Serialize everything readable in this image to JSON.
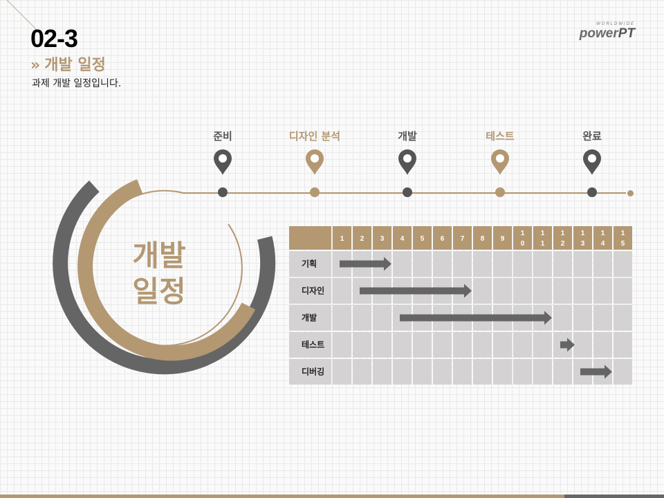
{
  "header": {
    "slide_number": "02-3",
    "section_chevron": "»",
    "section_title": "개발 일정",
    "description": "과제 개발 일정입니다."
  },
  "brand": {
    "small": "WORLDWIDE",
    "main_prefix": "power",
    "main_suffix": "PT"
  },
  "colors": {
    "gold": "#b39872",
    "gray": "#656565",
    "cell": "#d4d2d2",
    "background": "#fafafa"
  },
  "timeline": {
    "phases": [
      {
        "label": "준비",
        "color": "#555555",
        "icon": "map-pin-icon"
      },
      {
        "label": "디자인 분석",
        "color": "#b39872",
        "icon": "map-pin-icon"
      },
      {
        "label": "개발",
        "color": "#555555",
        "icon": "map-pin-icon"
      },
      {
        "label": "테스트",
        "color": "#b39872",
        "icon": "map-pin-icon"
      },
      {
        "label": "완료",
        "color": "#555555",
        "icon": "map-pin-icon"
      }
    ]
  },
  "ring": {
    "line1": "개발",
    "line2": "일정"
  },
  "gantt": {
    "columns": [
      [
        "1"
      ],
      [
        "2"
      ],
      [
        "3"
      ],
      [
        "4"
      ],
      [
        "5"
      ],
      [
        "6"
      ],
      [
        "7"
      ],
      [
        "8"
      ],
      [
        "9"
      ],
      [
        "1",
        "0"
      ],
      [
        "1",
        "1"
      ],
      [
        "1",
        "2"
      ],
      [
        "1",
        "3"
      ],
      [
        "1",
        "4"
      ],
      [
        "1",
        "5"
      ]
    ],
    "tasks": [
      {
        "name": "기획",
        "start": 1,
        "end": 3
      },
      {
        "name": "디자인",
        "start": 2,
        "end": 7
      },
      {
        "name": "개발",
        "start": 4,
        "end": 11
      },
      {
        "name": "테스트",
        "start": 12,
        "end": 12
      },
      {
        "name": "디버깅",
        "start": 13,
        "end": 14
      }
    ]
  }
}
